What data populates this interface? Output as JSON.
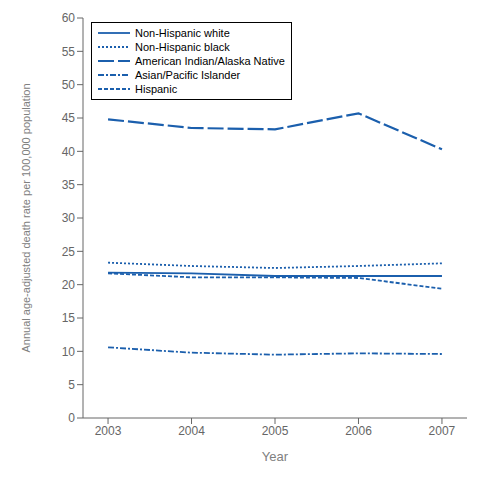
{
  "chart_data": {
    "type": "line",
    "xlabel": "Year",
    "ylabel": "Annual age-adjusted death rate per 100,000 population",
    "x": [
      2003,
      2004,
      2005,
      2006,
      2007
    ],
    "xlim": [
      2002.7,
      2007.3
    ],
    "xticks": [
      2003,
      2004,
      2005,
      2006,
      2007
    ],
    "ylim": [
      0,
      60
    ],
    "yticks": [
      0,
      5,
      10,
      15,
      20,
      25,
      30,
      35,
      40,
      45,
      50,
      55,
      60
    ],
    "grid": false,
    "legend": "upper left",
    "series": [
      {
        "name": "Non-Hispanic white",
        "color": "#1b5fad",
        "line_style": "solid",
        "values": [
          21.8,
          21.7,
          21.3,
          21.3,
          21.3
        ]
      },
      {
        "name": "Non-Hispanic black",
        "color": "#1b5fad",
        "line_style": "dotted",
        "values": [
          23.3,
          22.8,
          22.5,
          22.8,
          23.2
        ]
      },
      {
        "name": "American Indian/Alaska Native",
        "color": "#1b5fad",
        "line_style": "long_dashed",
        "values": [
          44.8,
          43.5,
          43.3,
          45.7,
          40.3
        ]
      },
      {
        "name": "Asian/Pacific Islander",
        "color": "#1b5fad",
        "line_style": "dash_dot",
        "values": [
          10.6,
          9.8,
          9.5,
          9.7,
          9.6
        ]
      },
      {
        "name": "Hispanic",
        "color": "#1b5fad",
        "line_style": "dashed",
        "values": [
          21.7,
          21.1,
          21.1,
          21.0,
          19.4
        ]
      }
    ]
  }
}
